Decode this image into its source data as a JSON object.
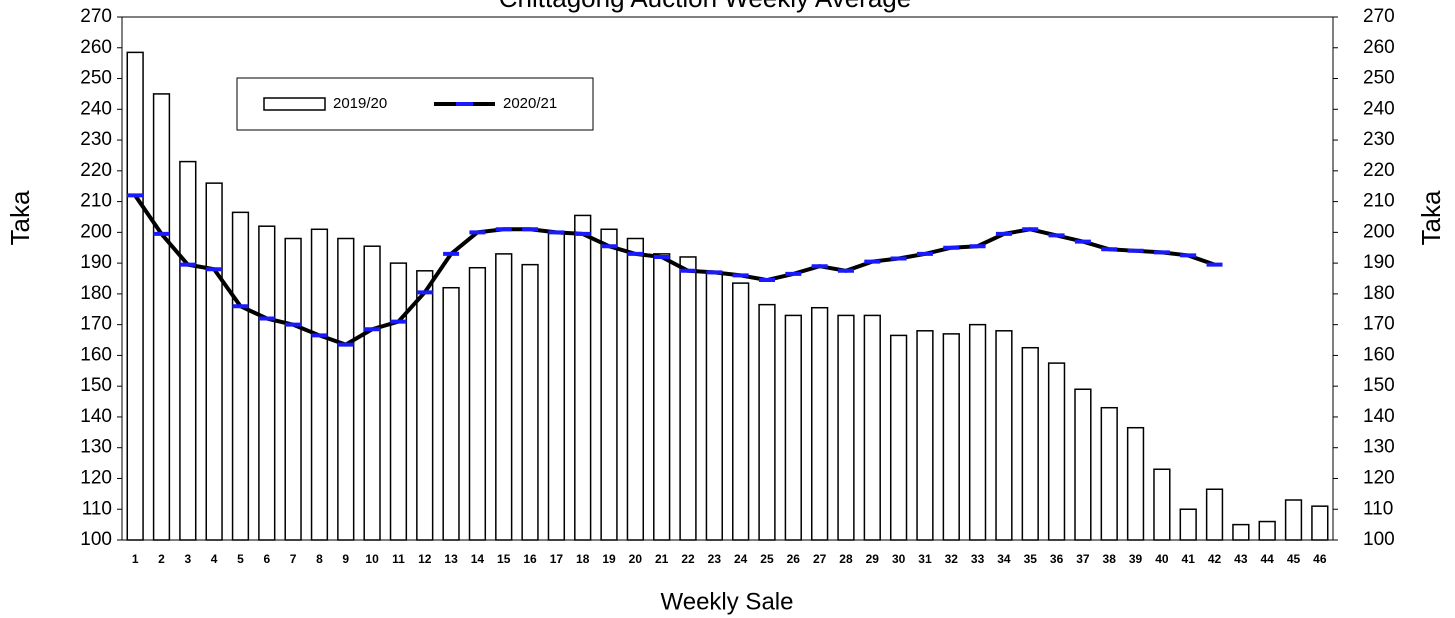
{
  "chart_data": {
    "type": "bar-line",
    "title": "Chittagong Auction Weekly Average",
    "x_label": "Weekly Sale",
    "y_label": "Taka",
    "y2_label": "Taka",
    "categories": [
      1,
      2,
      3,
      4,
      5,
      6,
      7,
      8,
      9,
      10,
      11,
      12,
      13,
      14,
      15,
      16,
      17,
      18,
      19,
      20,
      21,
      22,
      23,
      24,
      25,
      26,
      27,
      28,
      29,
      30,
      31,
      32,
      33,
      34,
      35,
      36,
      37,
      38,
      39,
      40,
      41,
      42,
      43,
      44,
      45,
      46
    ],
    "series": [
      {
        "name": "2019/20",
        "type": "bar",
        "color": "#ffffff",
        "edge_color": "#000000",
        "values": [
          258.5,
          245,
          223,
          216,
          206.5,
          202,
          198,
          201,
          198,
          195.5,
          190,
          187.5,
          182,
          188.5,
          193,
          189.5,
          200,
          205.5,
          201,
          198,
          193,
          192,
          187,
          183.5,
          176.5,
          173,
          175.5,
          173,
          173,
          166.5,
          168,
          167,
          170,
          168,
          162.5,
          157.5,
          149,
          143,
          136.5,
          123,
          110,
          116.5,
          105,
          106,
          113,
          111
        ]
      },
      {
        "name": "2020/21",
        "type": "line",
        "color": "#000000",
        "marker_color": "#1a1aff",
        "values": [
          212,
          199.5,
          189.5,
          188,
          176,
          172,
          170,
          166.5,
          163.5,
          168.5,
          171,
          180.5,
          193,
          200,
          201,
          201,
          200,
          199.5,
          195.5,
          193,
          192,
          187.5,
          187,
          186,
          184.5,
          186.5,
          189,
          187.5,
          190.5,
          191.5,
          193,
          195,
          195.5,
          199.5,
          201,
          199,
          197,
          194.5,
          194,
          193.5,
          192.5,
          189.5,
          null,
          null,
          null,
          null
        ]
      }
    ],
    "ylim": [
      100,
      270
    ],
    "yticks": [
      100,
      110,
      120,
      130,
      140,
      150,
      160,
      170,
      180,
      190,
      200,
      210,
      220,
      230,
      240,
      250,
      260,
      270
    ],
    "y2lim": [
      100,
      270
    ],
    "y2ticks": [
      100,
      110,
      120,
      130,
      140,
      150,
      160,
      170,
      180,
      190,
      200,
      210,
      220,
      230,
      240,
      250,
      260,
      270
    ],
    "grid": false,
    "legend": "upper left"
  }
}
